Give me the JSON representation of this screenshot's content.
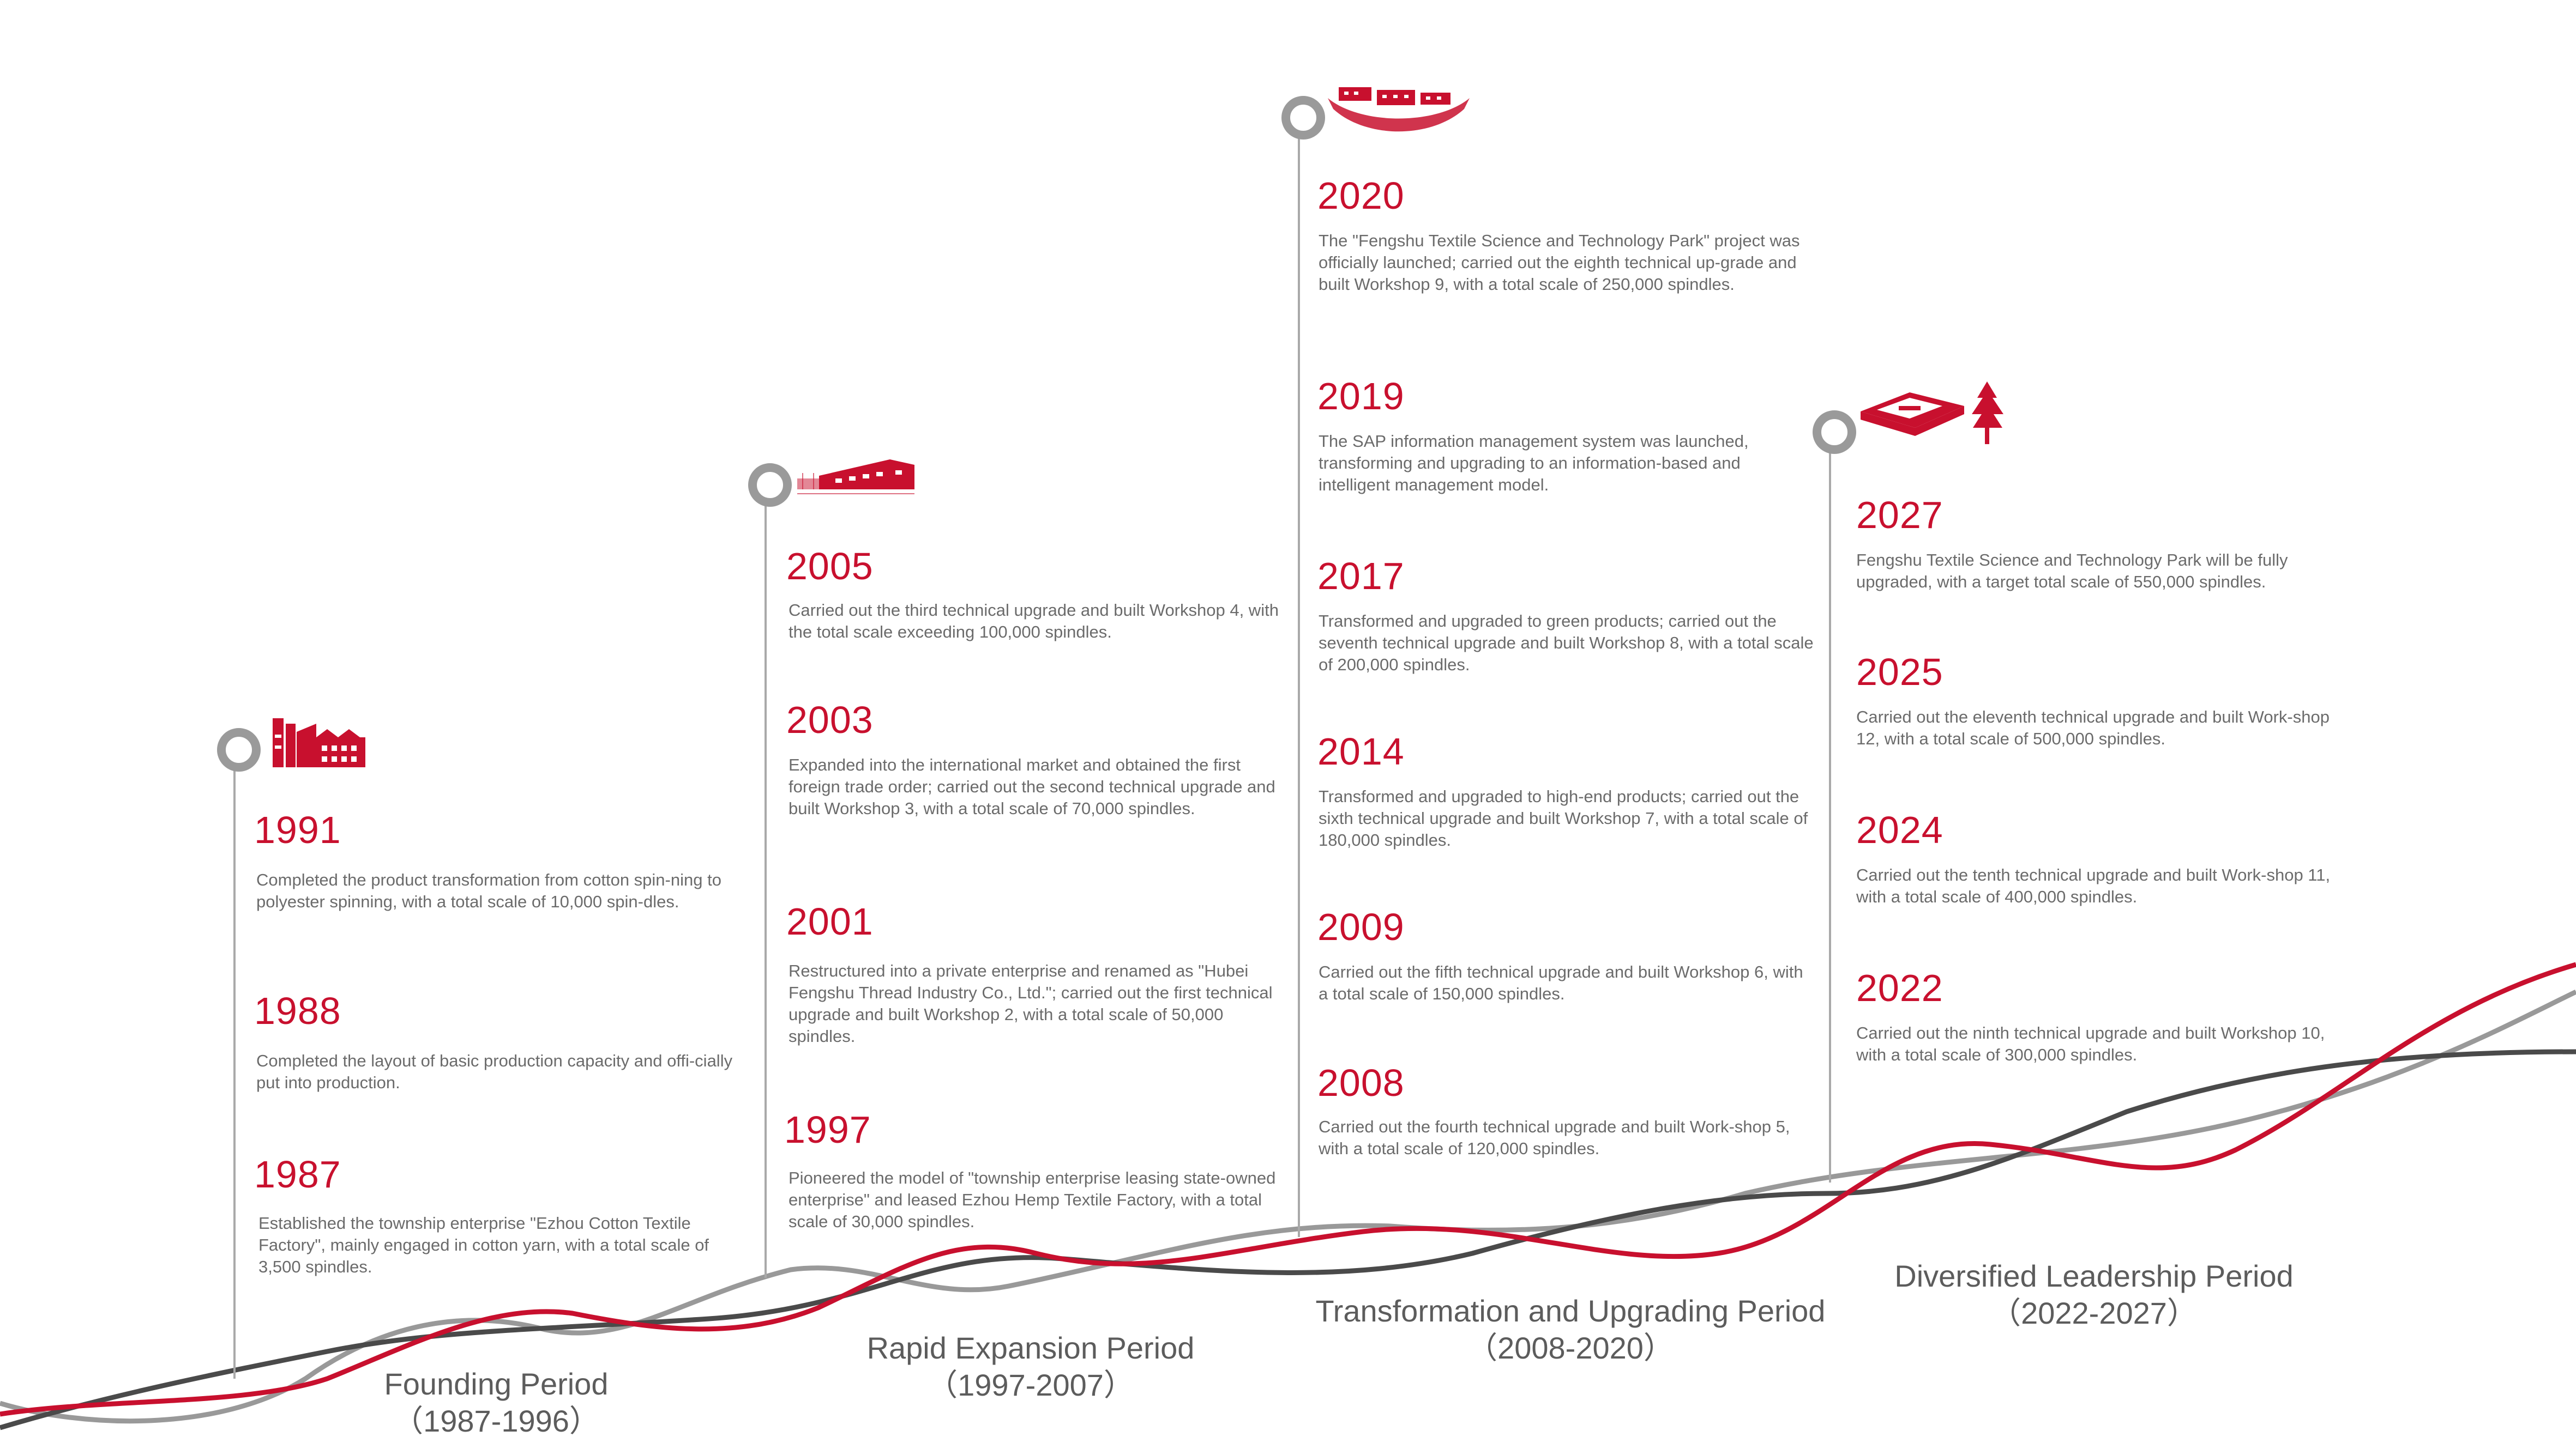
{
  "periods": [
    {
      "name": "Founding Period",
      "range": "（1987-1996）",
      "events": [
        {
          "year": "1991",
          "text": "Completed the product transformation from cotton spin-ning to polyester spinning, with a total scale of 10,000 spin-dles."
        },
        {
          "year": "1988",
          "text": "Completed the layout of basic production capacity and offi-cially put into production."
        },
        {
          "year": "1987",
          "text": "Established the township enterprise \"Ezhou Cotton Textile Factory\", mainly engaged in cotton yarn, with a total scale of 3,500 spindles."
        }
      ]
    },
    {
      "name": "Rapid Expansion Period",
      "range": "（1997-2007）",
      "events": [
        {
          "year": "2005",
          "text": "Carried out the third technical upgrade and built Workshop 4, with the total scale exceeding 100,000 spindles."
        },
        {
          "year": "2003",
          "text": "Expanded into the international market and obtained the first foreign trade order; carried out the second technical upgrade and built Workshop 3, with a total scale of 70,000 spindles."
        },
        {
          "year": "2001",
          "text": " Restructured into a private enterprise and renamed as \"Hubei Fengshu Thread Industry Co., Ltd.\"; carried out the first technical upgrade and built Workshop 2, with a total scale of 50,000 spindles."
        },
        {
          "year": "1997",
          "text": "Pioneered the model of \"township enterprise leasing state-owned enterprise\" and leased Ezhou Hemp Textile Factory, with a total scale of 30,000 spindles."
        }
      ]
    },
    {
      "name": "Transformation and Upgrading Period",
      "range": "（2008-2020）",
      "events": [
        {
          "year": "2020",
          "text": "The \"Fengshu Textile Science and Technology Park\" project was officially launched; carried out the eighth technical up-grade and built Workshop 9, with a total scale of 250,000 spindles."
        },
        {
          "year": "2019",
          "text": "The SAP information management system was launched, transforming and upgrading to an information-based and intelligent management model."
        },
        {
          "year": "2017",
          "text": "Transformed and upgraded to green products; carried out the seventh technical upgrade and built Workshop 8, with a total scale of 200,000 spindles."
        },
        {
          "year": "2014",
          "text": "Transformed and upgraded to high-end products; carried out the sixth technical upgrade and built Workshop 7, with a total scale of 180,000 spindles."
        },
        {
          "year": "2009",
          "text": "Carried out the fifth technical upgrade and built Workshop 6, with a total scale of 150,000 spindles."
        },
        {
          "year": "2008",
          "text": "Carried out the fourth technical upgrade and built Work-shop 5, with a total scale of 120,000 spindles."
        }
      ]
    },
    {
      "name": "Diversified Leadership Period",
      "range": "（2022-2027）",
      "events": [
        {
          "year": "2027",
          "text": "Fengshu Textile Science and Technology Park will be fully upgraded, with a target total scale of 550,000 spindles."
        },
        {
          "year": "2025",
          "text": "Carried out the eleventh technical upgrade and built Work-shop 12, with a total scale of 500,000 spindles."
        },
        {
          "year": "2024",
          "text": "Carried out the tenth technical upgrade and built Work-shop 11, with a total scale of 400,000 spindles."
        },
        {
          "year": "2022",
          "text": "Carried out the ninth technical upgrade and built Workshop 10, with a total scale of 300,000 spindles."
        }
      ]
    }
  ],
  "icons": [
    "factory-icon",
    "workshop-building-icon",
    "aerial-park-icon",
    "science-park-tree-icon"
  ],
  "colors": {
    "accent": "#c8102e",
    "dark_line": "#4a4a4a",
    "gray_line": "#999999",
    "text": "#6b6b6b"
  }
}
